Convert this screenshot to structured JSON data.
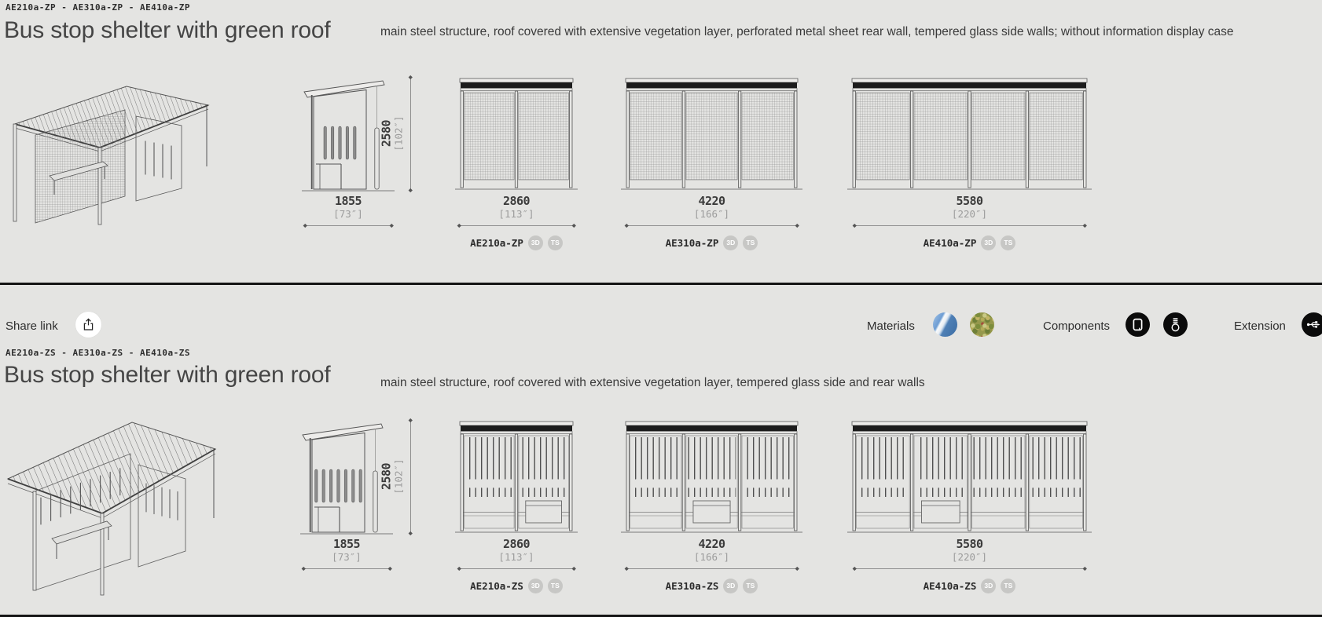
{
  "colors": {
    "background": "#e4e4e2",
    "divider": "#141414",
    "badge_bg": "#c7c7c5",
    "icon_circle_dark": "#0b0b0b",
    "material_steel_blue": "#6d9dd3",
    "material_green": "#95984c"
  },
  "toolbar": {
    "share_label": "Share link",
    "materials_label": "Materials",
    "components_label": "Components",
    "extension_label": "Extension",
    "icons": [
      "share-icon",
      "steel-swatch",
      "green-roof-swatch",
      "display-case-icon",
      "light-bulb-icon",
      "usb-icon"
    ]
  },
  "sections": [
    {
      "codes": "AE210a-ZP - AE310a-ZP - AE410a-ZP",
      "title": "Bus stop shelter with green roof",
      "description": "main steel structure, roof covered with extensive vegetation layer, perforated metal sheet rear wall, tempered glass side walls; without information display case",
      "side_view": {
        "width_mm": "1855",
        "width_in": "[73″]",
        "height_mm": "2580",
        "height_in": "[102″]"
      },
      "models": [
        {
          "code": "AE210a-ZP",
          "width_mm": "2860",
          "width_in": "[113″]",
          "badges": [
            "3D",
            "TS"
          ]
        },
        {
          "code": "AE310a-ZP",
          "width_mm": "4220",
          "width_in": "[166″]",
          "badges": [
            "3D",
            "TS"
          ]
        },
        {
          "code": "AE410a-ZP",
          "width_mm": "5580",
          "width_in": "[220″]",
          "badges": [
            "3D",
            "TS"
          ]
        }
      ]
    },
    {
      "codes": "AE210a-ZS - AE310a-ZS - AE410a-ZS",
      "title": "Bus stop shelter with green roof",
      "description": "main steel structure, roof covered with extensive vegetation layer, tempered glass side and rear walls",
      "side_view": {
        "width_mm": "1855",
        "width_in": "[73″]",
        "height_mm": "2580",
        "height_in": "[102″]"
      },
      "models": [
        {
          "code": "AE210a-ZS",
          "width_mm": "2860",
          "width_in": "[113″]",
          "badges": [
            "3D",
            "TS"
          ]
        },
        {
          "code": "AE310a-ZS",
          "width_mm": "4220",
          "width_in": "[166″]",
          "badges": [
            "3D",
            "TS"
          ]
        },
        {
          "code": "AE410a-ZS",
          "width_mm": "5580",
          "width_in": "[220″]",
          "badges": [
            "3D",
            "TS"
          ]
        }
      ]
    }
  ]
}
